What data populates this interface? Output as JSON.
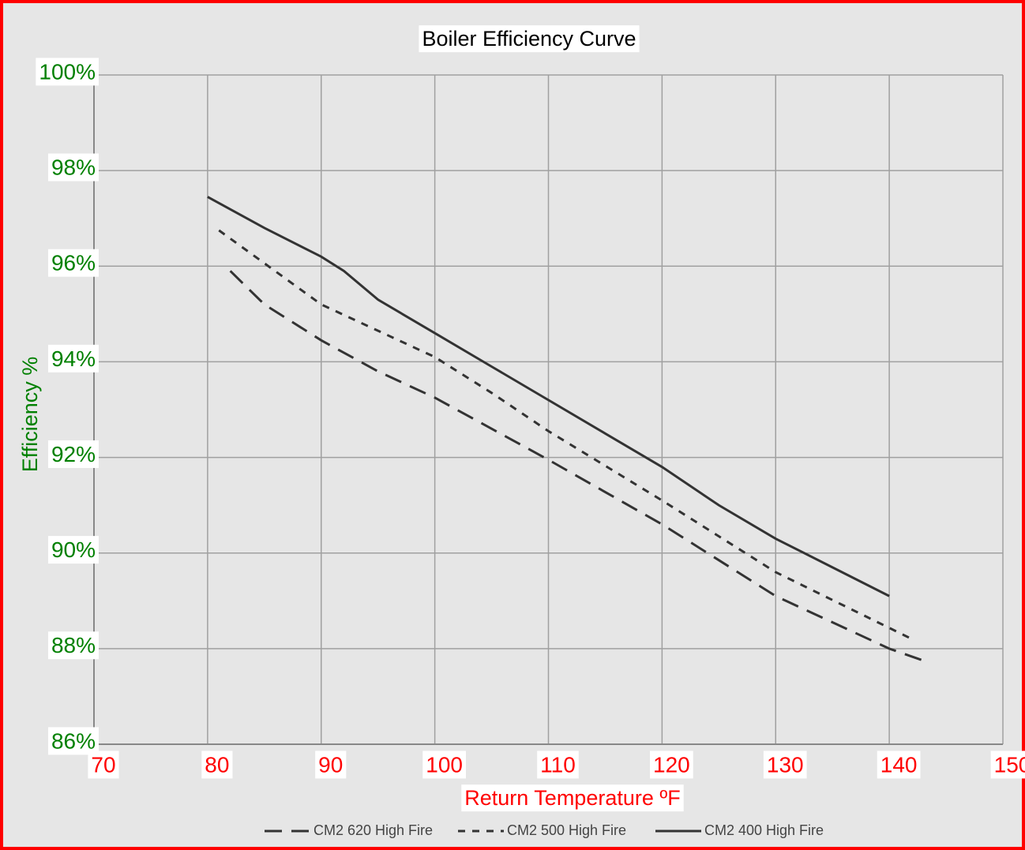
{
  "chart_data": {
    "type": "line",
    "title": "Boiler Efficiency Curve",
    "x_label": "Return Temperature ºF",
    "y_label": "Efficiency %",
    "xlim": [
      70,
      150
    ],
    "xticks": [
      70,
      80,
      90,
      100,
      110,
      120,
      130,
      140,
      150
    ],
    "ylim": [
      86,
      100
    ],
    "yticks": [
      {
        "value": 86,
        "label": "86%"
      },
      {
        "value": 88,
        "label": "88%"
      },
      {
        "value": 90,
        "label": "90%"
      },
      {
        "value": 92,
        "label": "92%"
      },
      {
        "value": 94,
        "label": "94%"
      },
      {
        "value": 96,
        "label": "96%"
      },
      {
        "value": 98,
        "label": "98%"
      },
      {
        "value": 100,
        "label": "100%"
      }
    ],
    "grid": true,
    "legend": "bottom",
    "series": [
      {
        "name": "CM2 620 High Fire",
        "color": "#333333",
        "dash": "long",
        "x": [
          82,
          85,
          90,
          95,
          100,
          110,
          120,
          130,
          140,
          143
        ],
        "values": [
          95.9,
          95.2,
          94.45,
          93.8,
          93.25,
          91.95,
          90.6,
          89.1,
          88.0,
          87.75
        ]
      },
      {
        "name": "CM2 500 High Fire",
        "color": "#333333",
        "dash": "short",
        "x": [
          81,
          90,
          100,
          105,
          110,
          120,
          130,
          142
        ],
        "values": [
          96.75,
          95.2,
          94.1,
          93.35,
          92.55,
          91.1,
          89.6,
          88.2
        ]
      },
      {
        "name": "CM2 400 High Fire",
        "color": "#333333",
        "dash": "solid",
        "x": [
          80,
          85,
          90,
          92,
          95,
          100,
          105,
          110,
          115,
          120,
          125,
          130,
          135,
          140
        ],
        "values": [
          97.45,
          96.8,
          96.2,
          95.9,
          95.3,
          94.6,
          93.9,
          93.2,
          92.5,
          91.8,
          91.0,
          90.3,
          89.7,
          89.1
        ]
      }
    ]
  }
}
